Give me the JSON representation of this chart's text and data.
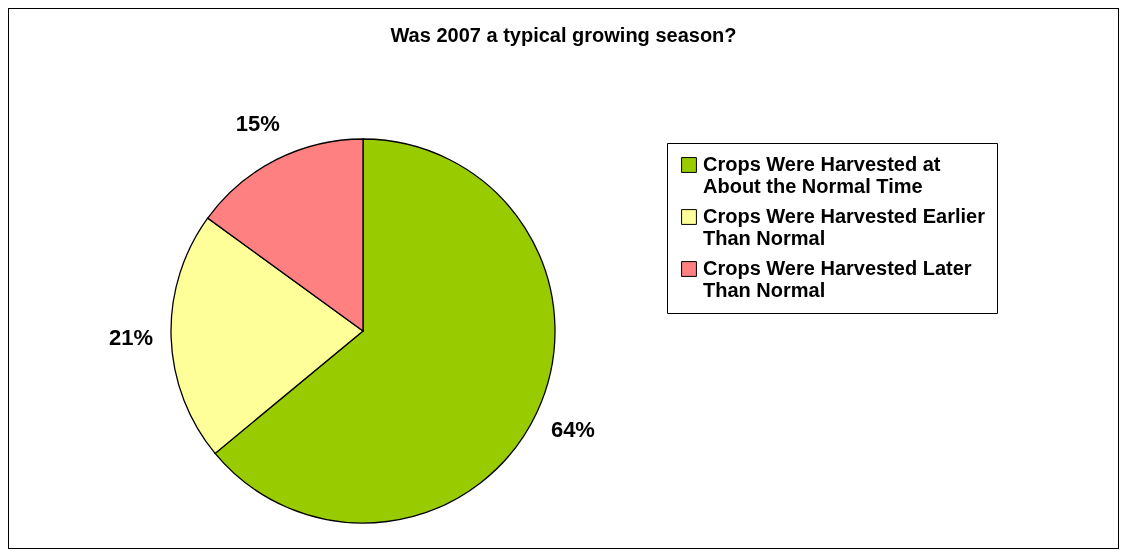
{
  "chart_data": {
    "type": "pie",
    "title": "Was 2007 a typical growing season?",
    "categories": [
      "Crops Were Harvested at About the Normal Time",
      "Crops Were Harvested Earlier Than Normal",
      "Crops Were Harvested Later Than Normal"
    ],
    "values": [
      64,
      21,
      15
    ],
    "colors": [
      "#99cc00",
      "#ffff99",
      "#ff8080"
    ],
    "value_labels": [
      "64%",
      "21%",
      "15%"
    ],
    "legend": "right"
  }
}
